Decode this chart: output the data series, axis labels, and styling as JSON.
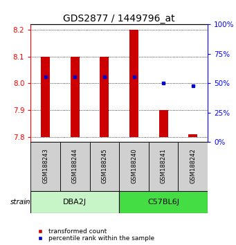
{
  "title": "GDS2877 / 1449796_at",
  "samples": [
    "GSM188243",
    "GSM188244",
    "GSM188245",
    "GSM188240",
    "GSM188241",
    "GSM188242"
  ],
  "red_bar_tops": [
    8.1,
    8.1,
    8.1,
    8.2,
    7.9,
    7.81
  ],
  "red_bar_base": 7.8,
  "blue_y_values": [
    8.025,
    8.025,
    8.025,
    8.025,
    8.0,
    7.99
  ],
  "ylim_left": [
    7.78,
    8.22
  ],
  "ylim_right": [
    0,
    100
  ],
  "yticks_left": [
    7.8,
    7.9,
    8.0,
    8.1,
    8.2
  ],
  "yticks_right": [
    0,
    25,
    50,
    75,
    100
  ],
  "groups": [
    {
      "label": "DBA2J",
      "indices": [
        0,
        1,
        2
      ],
      "color": "#c8f5c8"
    },
    {
      "label": "C57BL6J",
      "indices": [
        3,
        4,
        5
      ],
      "color": "#44dd44"
    }
  ],
  "group_label_x": "strain",
  "bar_color": "#cc0000",
  "dot_color": "#0000cc",
  "background_plot": "#ffffff",
  "background_sample_box": "#d0d0d0",
  "legend_red_label": "transformed count",
  "legend_blue_label": "percentile rank within the sample",
  "title_fontsize": 10,
  "tick_fontsize": 7.5,
  "sample_fontsize": 6,
  "group_fontsize": 8,
  "legend_fontsize": 6.5
}
